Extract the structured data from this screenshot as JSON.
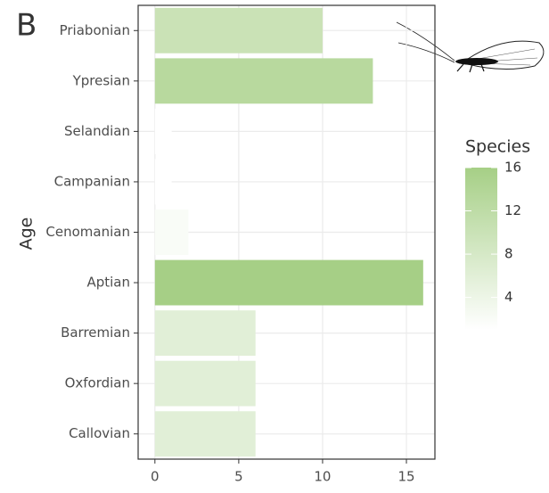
{
  "chart_data": {
    "type": "bar",
    "orientation": "horizontal",
    "panel_label": "B",
    "y_label": "Age",
    "categories": [
      "Priabonian",
      "Ypresian",
      "Selandian",
      "Campanian",
      "Cenomanian",
      "Aptian",
      "Barremian",
      "Oxfordian",
      "Callovian"
    ],
    "values": [
      10,
      13,
      1,
      1,
      2,
      16,
      6,
      6,
      6
    ],
    "xlim": [
      -1,
      16.7
    ],
    "xticks": [
      0,
      5,
      10,
      15
    ],
    "grid": true,
    "color_scale": {
      "title": "Species",
      "low_color": "#ffffff",
      "high_color": "#a6cf86",
      "lim": [
        1,
        16
      ],
      "ticks": [
        4,
        8,
        12,
        16
      ]
    }
  }
}
